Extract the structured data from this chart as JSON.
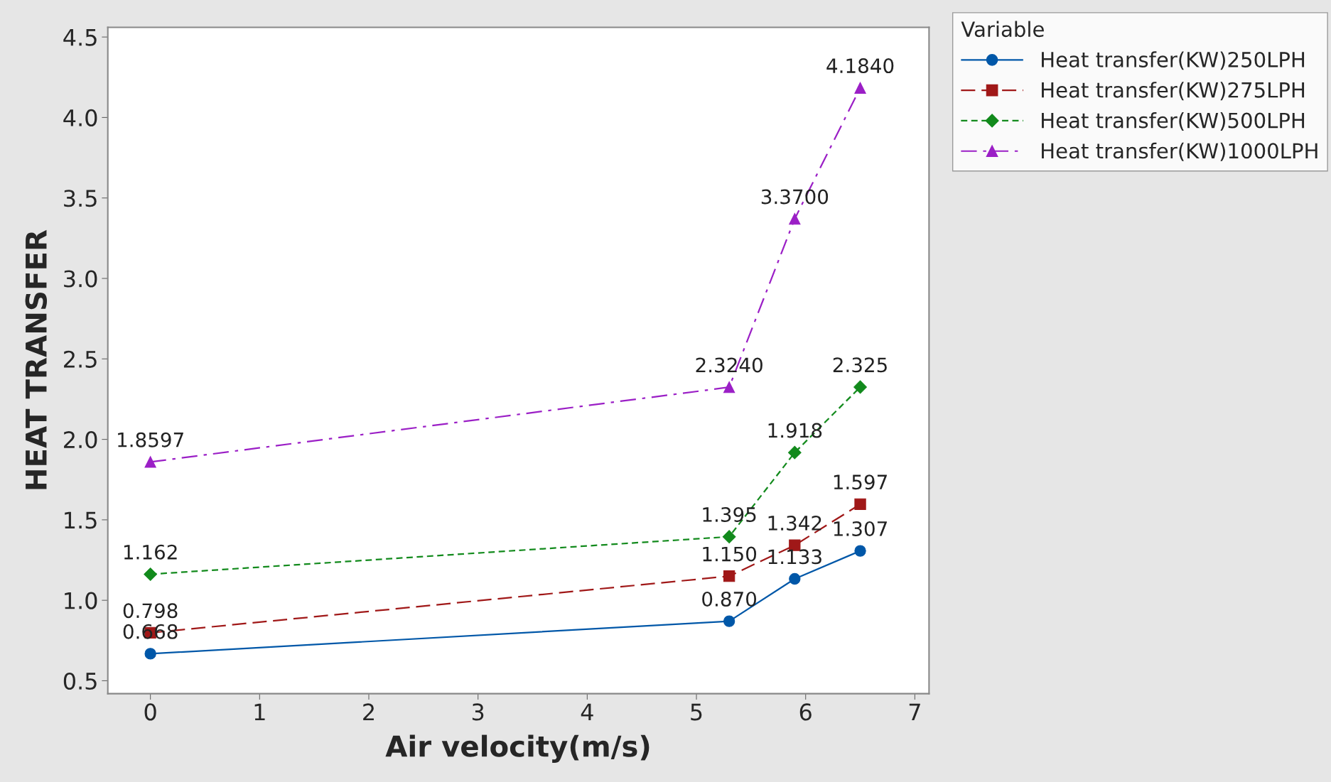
{
  "chart_data": {
    "type": "line",
    "xlabel": "Air velocity(m/s)",
    "ylabel": "HEAT TRANSFER",
    "legend_title": "Variable",
    "legend": "right",
    "x": [
      0,
      5.3,
      5.9,
      6.5
    ],
    "series": [
      {
        "name": "Heat transfer(KW)250LPH",
        "color": "#0057a8",
        "marker": "circle",
        "line_style": "solid",
        "values": [
          0.668,
          0.87,
          1.133,
          1.307
        ],
        "value_labels": [
          "0.668",
          "0.870",
          "1.133",
          "1.307"
        ]
      },
      {
        "name": "Heat transfer(KW)275LPH",
        "color": "#a01818",
        "marker": "square",
        "line_style": "dashed",
        "values": [
          0.798,
          1.15,
          1.342,
          1.597
        ],
        "value_labels": [
          "0.798",
          "1.150",
          "1.342",
          "1.597"
        ]
      },
      {
        "name": "Heat transfer(KW)500LPH",
        "color": "#128a1c",
        "marker": "diamond",
        "line_style": "dotted",
        "values": [
          1.162,
          1.395,
          1.918,
          2.325
        ],
        "value_labels": [
          "1.162",
          "1.395",
          "1.918",
          "2.325"
        ]
      },
      {
        "name": "Heat transfer(KW)1000LPH",
        "color": "#9b1fc6",
        "marker": "triangle",
        "line_style": "dashdot",
        "values": [
          1.8597,
          2.324,
          3.37,
          4.184
        ],
        "value_labels": [
          "1.8597",
          "2.3240",
          "3.3700",
          "4.1840"
        ]
      }
    ],
    "xlim": [
      -0.39,
      7.13
    ],
    "xticks": [
      0,
      1,
      2,
      3,
      4,
      5,
      6,
      7
    ],
    "ylim": [
      0.42,
      4.56
    ],
    "yticks": [
      0.5,
      {
        "value": 1,
        "label": "1.0"
      },
      1.5,
      {
        "value": 2,
        "label": "2.0"
      },
      2.5,
      {
        "value": 3,
        "label": "3.0"
      },
      3.5,
      {
        "value": 4,
        "label": "4.0"
      },
      4.5
    ],
    "grid": false
  }
}
